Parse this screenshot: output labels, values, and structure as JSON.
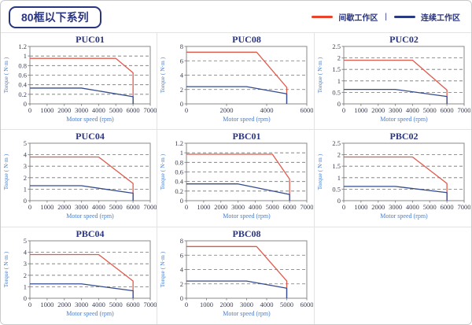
{
  "header": {
    "title": "80框以下系列",
    "legend": {
      "intermittent_label": "间歇工作区",
      "separator": "|",
      "continuous_label": "连续工作区"
    }
  },
  "colors": {
    "navy": "#2a3580",
    "legend_red": "#e8432b",
    "line_red": "#e05a4c",
    "line_blue": "#344b8e",
    "axis_label_blue": "#4a7cc7",
    "grid_gray": "#737373",
    "tick_text": "#3b3e52",
    "plot_border": "#8a8a8a",
    "cell_border": "#e3e3e3",
    "outer_border": "#c9c9c9"
  },
  "chart_data": [
    {
      "type": "line",
      "title": "PUC01",
      "xlabel": "Motor speed (rpm)",
      "ylabel": "Torque ( N·m )",
      "xlim": [
        0,
        7000
      ],
      "ylim": [
        0,
        1.2
      ],
      "xticks": [
        0,
        1000,
        2000,
        3000,
        4000,
        5000,
        6000,
        7000
      ],
      "yticks": [
        0,
        0.2,
        0.4,
        0.6,
        0.8,
        1,
        1.2
      ],
      "grid": "dashed-horizontal",
      "legend_position": "none",
      "series": [
        {
          "name": "间歇工作区",
          "color_key": "line_red",
          "points": [
            [
              0,
              0.95
            ],
            [
              5000,
              0.95
            ],
            [
              6000,
              0.65
            ],
            [
              6000,
              0
            ]
          ]
        },
        {
          "name": "连续工作区",
          "color_key": "line_blue",
          "points": [
            [
              0,
              0.33
            ],
            [
              3000,
              0.33
            ],
            [
              6000,
              0.15
            ],
            [
              6000,
              0
            ]
          ]
        }
      ]
    },
    {
      "type": "line",
      "title": "PUC08",
      "xlabel": "Motor speed (rpm)",
      "ylabel": "Torque ( N·m )",
      "xlim": [
        0,
        6000
      ],
      "ylim": [
        0,
        8
      ],
      "xticks": [
        0,
        2000,
        4000,
        6000
      ],
      "yticks": [
        0,
        2,
        4,
        6,
        8
      ],
      "grid": "dashed-horizontal",
      "legend_position": "none",
      "series": [
        {
          "name": "间歇工作区",
          "color_key": "line_red",
          "points": [
            [
              0,
              7.2
            ],
            [
              3500,
              7.2
            ],
            [
              5000,
              2.3
            ],
            [
              5000,
              0
            ]
          ]
        },
        {
          "name": "连续工作区",
          "color_key": "line_blue",
          "points": [
            [
              0,
              2.4
            ],
            [
              3000,
              2.4
            ],
            [
              5000,
              1.4
            ],
            [
              5000,
              0
            ]
          ]
        }
      ]
    },
    {
      "type": "line",
      "title": "PUC02",
      "xlabel": "Motor speed (rpm)",
      "ylabel": "Torque ( N·m )",
      "xlim": [
        0,
        7000
      ],
      "ylim": [
        0,
        2.5
      ],
      "xticks": [
        0,
        1000,
        2000,
        3000,
        4000,
        5000,
        6000,
        7000
      ],
      "yticks": [
        0,
        0.5,
        1,
        1.5,
        2,
        2.5
      ],
      "grid": "dashed-horizontal",
      "legend_position": "none",
      "series": [
        {
          "name": "间歇工作区",
          "color_key": "line_red",
          "points": [
            [
              0,
              1.9
            ],
            [
              4000,
              1.9
            ],
            [
              6000,
              0.6
            ],
            [
              6000,
              0
            ]
          ]
        },
        {
          "name": "连续工作区",
          "color_key": "line_blue",
          "points": [
            [
              0,
              0.63
            ],
            [
              3000,
              0.63
            ],
            [
              6000,
              0.32
            ],
            [
              6000,
              0
            ]
          ]
        }
      ]
    },
    {
      "type": "line",
      "title": "PUC04",
      "xlabel": "Motor speed (rpm)",
      "ylabel": "Torque ( N·m )",
      "xlim": [
        0,
        7000
      ],
      "ylim": [
        0,
        5
      ],
      "xticks": [
        0,
        1000,
        2000,
        3000,
        4000,
        5000,
        6000,
        7000
      ],
      "yticks": [
        0,
        1,
        2,
        3,
        4,
        5
      ],
      "grid": "dashed-horizontal",
      "legend_position": "none",
      "series": [
        {
          "name": "间歇工作区",
          "color_key": "line_red",
          "points": [
            [
              0,
              3.8
            ],
            [
              4000,
              3.8
            ],
            [
              6000,
              1.5
            ],
            [
              6000,
              0
            ]
          ]
        },
        {
          "name": "连续工作区",
          "color_key": "line_blue",
          "points": [
            [
              0,
              1.3
            ],
            [
              3000,
              1.3
            ],
            [
              6000,
              0.65
            ],
            [
              6000,
              0
            ]
          ]
        }
      ]
    },
    {
      "type": "line",
      "title": "PBC01",
      "xlabel": "Motor speed (rpm)",
      "ylabel": "Torque ( N·m )",
      "xlim": [
        0,
        7000
      ],
      "ylim": [
        0,
        1.2
      ],
      "xticks": [
        0,
        1000,
        2000,
        3000,
        4000,
        5000,
        6000,
        7000
      ],
      "yticks": [
        0,
        0.2,
        0.4,
        0.6,
        0.8,
        1,
        1.2
      ],
      "grid": "dashed-horizontal",
      "legend_position": "none",
      "series": [
        {
          "name": "间歇工作区",
          "color_key": "line_red",
          "points": [
            [
              0,
              0.97
            ],
            [
              5000,
              0.97
            ],
            [
              6000,
              0.45
            ],
            [
              6000,
              0
            ]
          ]
        },
        {
          "name": "连续工作区",
          "color_key": "line_blue",
          "points": [
            [
              0,
              0.35
            ],
            [
              3000,
              0.35
            ],
            [
              6000,
              0.13
            ],
            [
              6000,
              0
            ]
          ]
        }
      ]
    },
    {
      "type": "line",
      "title": "PBC02",
      "xlabel": "Motor speed (rpm)",
      "ylabel": "Torque ( N·m )",
      "xlim": [
        0,
        7000
      ],
      "ylim": [
        0,
        2.5
      ],
      "xticks": [
        0,
        1000,
        2000,
        3000,
        4000,
        5000,
        6000,
        7000
      ],
      "yticks": [
        0,
        0.5,
        1,
        1.5,
        2,
        2.5
      ],
      "grid": "dashed-horizontal",
      "legend_position": "none",
      "series": [
        {
          "name": "间歇工作区",
          "color_key": "line_red",
          "points": [
            [
              0,
              1.9
            ],
            [
              4000,
              1.9
            ],
            [
              6000,
              0.75
            ],
            [
              6000,
              0
            ]
          ]
        },
        {
          "name": "连续工作区",
          "color_key": "line_blue",
          "points": [
            [
              0,
              0.62
            ],
            [
              3000,
              0.62
            ],
            [
              6000,
              0.35
            ],
            [
              6000,
              0
            ]
          ]
        }
      ]
    },
    {
      "type": "line",
      "title": "PBC04",
      "xlabel": "Motor speed (rpm)",
      "ylabel": "Torque ( N·m )",
      "xlim": [
        0,
        7000
      ],
      "ylim": [
        0,
        5
      ],
      "xticks": [
        0,
        1000,
        2000,
        3000,
        4000,
        5000,
        6000,
        7000
      ],
      "yticks": [
        0,
        1,
        2,
        3,
        4,
        5
      ],
      "grid": "dashed-horizontal",
      "legend_position": "none",
      "series": [
        {
          "name": "间歇工作区",
          "color_key": "line_red",
          "points": [
            [
              0,
              3.8
            ],
            [
              4000,
              3.8
            ],
            [
              6000,
              1.5
            ],
            [
              6000,
              0
            ]
          ]
        },
        {
          "name": "连续工作区",
          "color_key": "line_blue",
          "points": [
            [
              0,
              1.25
            ],
            [
              3000,
              1.25
            ],
            [
              6000,
              0.65
            ],
            [
              6000,
              0
            ]
          ]
        }
      ]
    },
    {
      "type": "line",
      "title": "PBC08",
      "xlabel": "Motor speed (rpm)",
      "ylabel": "Torque ( N·m )",
      "xlim": [
        0,
        6000
      ],
      "ylim": [
        0,
        8
      ],
      "xticks": [
        0,
        1000,
        2000,
        3000,
        4000,
        5000,
        6000
      ],
      "yticks": [
        0,
        2,
        4,
        6,
        8
      ],
      "grid": "dashed-horizontal",
      "legend_position": "none",
      "series": [
        {
          "name": "间歇工作区",
          "color_key": "line_red",
          "points": [
            [
              0,
              7.2
            ],
            [
              3500,
              7.2
            ],
            [
              5000,
              2.4
            ],
            [
              5000,
              0
            ]
          ]
        },
        {
          "name": "连续工作区",
          "color_key": "line_blue",
          "points": [
            [
              0,
              2.4
            ],
            [
              3000,
              2.4
            ],
            [
              5000,
              1.4
            ],
            [
              5000,
              0
            ]
          ]
        }
      ]
    }
  ]
}
